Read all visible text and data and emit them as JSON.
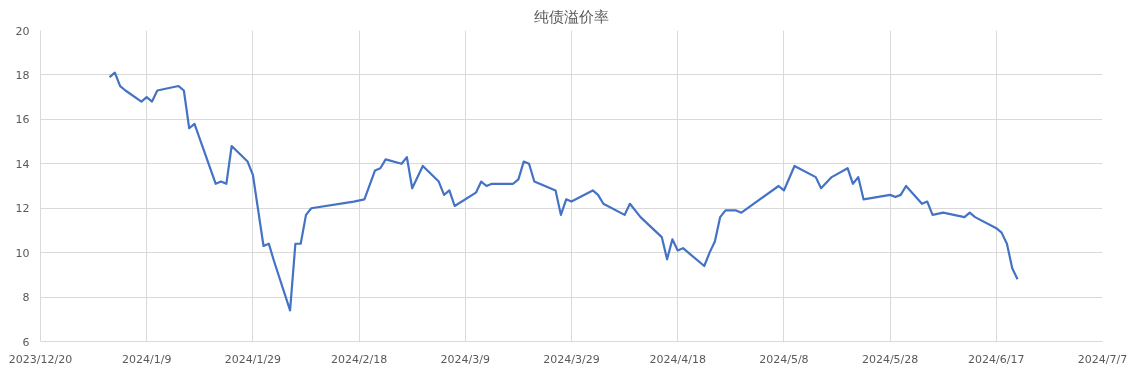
{
  "chart_data": {
    "type": "line",
    "title": "纯债溢价率",
    "x": [
      "2024-01-02",
      "2024-01-03",
      "2024-01-04",
      "2024-01-05",
      "2024-01-08",
      "2024-01-09",
      "2024-01-10",
      "2024-01-11",
      "2024-01-15",
      "2024-01-16",
      "2024-01-17",
      "2024-01-18",
      "2024-01-22",
      "2024-01-23",
      "2024-01-24",
      "2024-01-25",
      "2024-01-28",
      "2024-01-29",
      "2024-01-31",
      "2024-02-01",
      "2024-02-02",
      "2024-02-05",
      "2024-02-06",
      "2024-02-07",
      "2024-02-08",
      "2024-02-09",
      "2024-02-17",
      "2024-02-19",
      "2024-02-21",
      "2024-02-22",
      "2024-02-23",
      "2024-02-26",
      "2024-02-27",
      "2024-02-28",
      "2024-03-01",
      "2024-03-04",
      "2024-03-05",
      "2024-03-06",
      "2024-03-07",
      "2024-03-11",
      "2024-03-12",
      "2024-03-13",
      "2024-03-14",
      "2024-03-18",
      "2024-03-19",
      "2024-03-20",
      "2024-03-21",
      "2024-03-22",
      "2024-03-26",
      "2024-03-27",
      "2024-03-28",
      "2024-03-29",
      "2024-04-02",
      "2024-04-03",
      "2024-04-04",
      "2024-04-08",
      "2024-04-09",
      "2024-04-11",
      "2024-04-15",
      "2024-04-16",
      "2024-04-17",
      "2024-04-18",
      "2024-04-19",
      "2024-04-23",
      "2024-04-24",
      "2024-04-25",
      "2024-04-26",
      "2024-04-27",
      "2024-04-29",
      "2024-04-30",
      "2024-05-07",
      "2024-05-08",
      "2024-05-10",
      "2024-05-14",
      "2024-05-15",
      "2024-05-17",
      "2024-05-20",
      "2024-05-21",
      "2024-05-22",
      "2024-05-23",
      "2024-05-28",
      "2024-05-29",
      "2024-05-30",
      "2024-05-31",
      "2024-06-03",
      "2024-06-04",
      "2024-06-05",
      "2024-06-07",
      "2024-06-11",
      "2024-06-12",
      "2024-06-13",
      "2024-06-17",
      "2024-06-18",
      "2024-06-19",
      "2024-06-20",
      "2024-06-21"
    ],
    "series": [
      {
        "color": "#4472c4",
        "values": [
          17.9,
          18.1,
          17.5,
          17.3,
          16.8,
          17.0,
          16.8,
          17.3,
          17.5,
          17.3,
          15.6,
          15.8,
          13.1,
          13.2,
          13.1,
          14.8,
          14.1,
          13.5,
          10.3,
          10.4,
          9.6,
          7.4,
          10.4,
          10.4,
          11.7,
          12.0,
          12.3,
          12.4,
          13.7,
          13.8,
          14.2,
          14.0,
          14.3,
          12.9,
          13.9,
          13.2,
          12.6,
          12.8,
          12.1,
          12.7,
          13.2,
          13.0,
          13.1,
          13.1,
          13.3,
          14.1,
          14.0,
          13.2,
          12.8,
          11.7,
          12.4,
          12.3,
          12.8,
          12.6,
          12.2,
          11.7,
          12.2,
          11.6,
          10.7,
          9.7,
          10.6,
          10.1,
          10.2,
          9.4,
          10.0,
          10.5,
          11.6,
          11.9,
          11.9,
          11.8,
          13.0,
          12.8,
          13.9,
          13.4,
          12.9,
          13.4,
          13.8,
          13.1,
          13.4,
          12.4,
          12.6,
          12.5,
          12.6,
          13.0,
          12.2,
          12.3,
          11.7,
          11.8,
          11.6,
          11.8,
          11.6,
          11.1,
          10.9,
          10.4,
          9.3,
          8.8
        ]
      }
    ],
    "xlim": [
      "2023-12-20",
      "2024-07-07"
    ],
    "xticks": [
      {
        "value": "2023-12-20",
        "label": "2023/12/20"
      },
      {
        "value": "2024-01-09",
        "label": "2024/1/9"
      },
      {
        "value": "2024-01-29",
        "label": "2024/1/29"
      },
      {
        "value": "2024-02-18",
        "label": "2024/2/18"
      },
      {
        "value": "2024-03-09",
        "label": "2024/3/9"
      },
      {
        "value": "2024-03-29",
        "label": "2024/3/29"
      },
      {
        "value": "2024-04-18",
        "label": "2024/4/18"
      },
      {
        "value": "2024-05-08",
        "label": "2024/5/8"
      },
      {
        "value": "2024-05-28",
        "label": "2024/5/28"
      },
      {
        "value": "2024-06-17",
        "label": "2024/6/17"
      },
      {
        "value": "2024-07-07",
        "label": "2024/7/7"
      }
    ],
    "ylim": [
      6,
      20
    ],
    "yticks": [
      6,
      8,
      10,
      12,
      14,
      16,
      18,
      20
    ],
    "grid": true,
    "marker": "none",
    "line_style": "solid"
  }
}
